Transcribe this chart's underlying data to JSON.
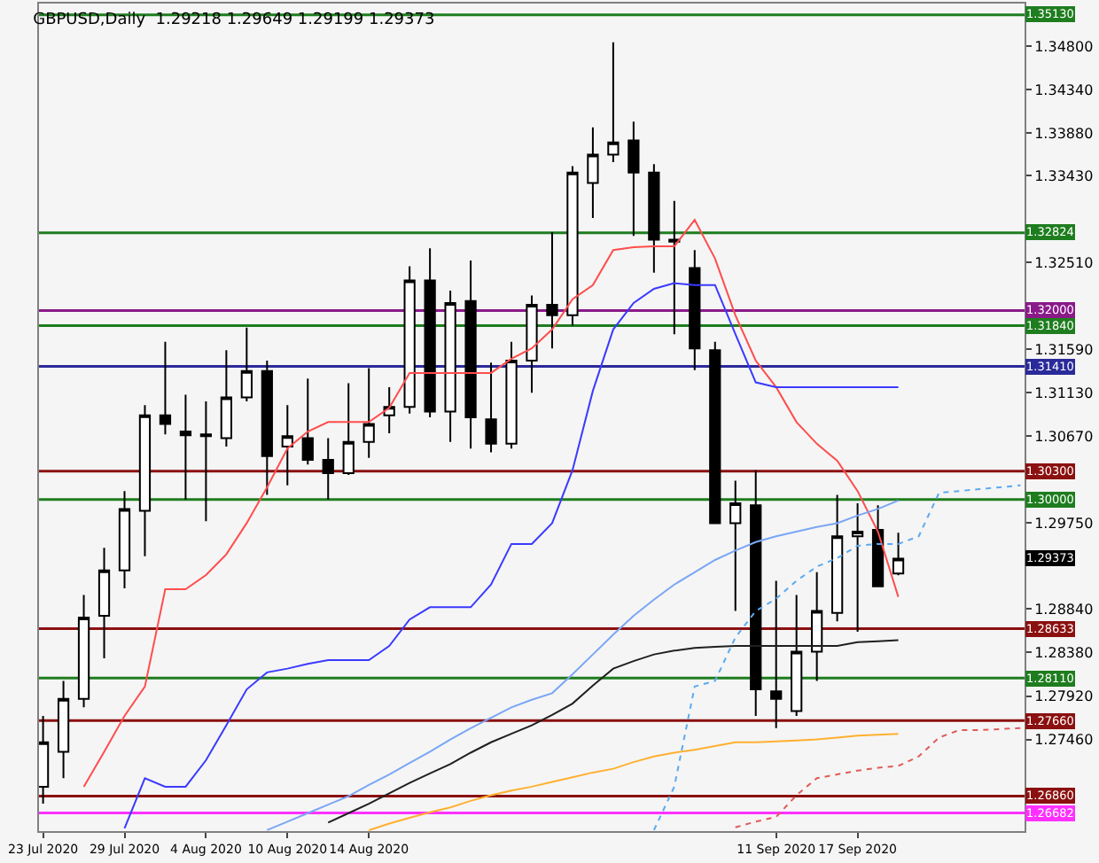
{
  "chart_data": {
    "type": "candlestick",
    "title": "GBPUSD,Daily  1.29218 1.29649 1.29199 1.29373",
    "categories": [
      "23 Jul 2020",
      null,
      null,
      null,
      "29 Jul 2020",
      null,
      null,
      null,
      "4 Aug 2020",
      null,
      null,
      null,
      "10 Aug 2020",
      null,
      null,
      null,
      "14 Aug 2020",
      null,
      null,
      null,
      null,
      null,
      null,
      null,
      null,
      null,
      null,
      null,
      null,
      null,
      null,
      null,
      null,
      null,
      null,
      null,
      "11 Sep 2020",
      null,
      null,
      null,
      "17 Sep 2020",
      null,
      null,
      null,
      null,
      null,
      null,
      null,
      null
    ],
    "ohlc": [
      [
        1.2696,
        1.2771,
        1.2678,
        1.2743
      ],
      [
        1.2733,
        1.2808,
        1.2705,
        1.2789
      ],
      [
        1.2789,
        1.2899,
        1.278,
        1.2875
      ],
      [
        1.2877,
        1.2949,
        1.2832,
        1.2925
      ],
      [
        1.2925,
        1.3009,
        1.2906,
        1.299
      ],
      [
        1.2988,
        1.31,
        1.294,
        1.3089
      ],
      [
        1.3089,
        1.3167,
        1.3069,
        1.308
      ],
      [
        1.3072,
        1.3111,
        1.3,
        1.3068
      ],
      [
        1.3069,
        1.3104,
        1.2977,
        1.3067
      ],
      [
        1.3065,
        1.3158,
        1.3056,
        1.3108
      ],
      [
        1.3108,
        1.3182,
        1.3104,
        1.3136
      ],
      [
        1.3136,
        1.3147,
        1.3005,
        1.3046
      ],
      [
        1.3056,
        1.31,
        1.3015,
        1.3067
      ],
      [
        1.3065,
        1.3128,
        1.3037,
        1.3042
      ],
      [
        1.3042,
        1.3065,
        1.3,
        1.3028
      ],
      [
        1.3028,
        1.3123,
        1.3026,
        1.3061
      ],
      [
        1.3061,
        1.3139,
        1.3044,
        1.308
      ],
      [
        1.3089,
        1.3119,
        1.307,
        1.3098
      ],
      [
        1.3098,
        1.3247,
        1.3091,
        1.3232
      ],
      [
        1.3232,
        1.3266,
        1.3087,
        1.3093
      ],
      [
        1.3093,
        1.3221,
        1.3061,
        1.3208
      ],
      [
        1.321,
        1.3253,
        1.3054,
        1.3087
      ],
      [
        1.3085,
        1.3145,
        1.305,
        1.3059
      ],
      [
        1.3059,
        1.3167,
        1.3054,
        1.3147
      ],
      [
        1.3147,
        1.3216,
        1.3113,
        1.3206
      ],
      [
        1.3206,
        1.3283,
        1.316,
        1.3195
      ],
      [
        1.3195,
        1.3353,
        1.3184,
        1.3346
      ],
      [
        1.3335,
        1.3394,
        1.3298,
        1.3365
      ],
      [
        1.3365,
        1.3484,
        1.3357,
        1.3378
      ],
      [
        1.338,
        1.34,
        1.3279,
        1.3346
      ],
      [
        1.3346,
        1.3355,
        1.324,
        1.3275
      ],
      [
        1.3275,
        1.3316,
        1.3175,
        1.3273
      ],
      [
        1.3245,
        1.3264,
        1.3137,
        1.316
      ],
      [
        1.3158,
        1.3167,
        1.2975,
        1.2975
      ],
      [
        1.2975,
        1.302,
        1.2882,
        1.2996
      ],
      [
        1.2994,
        1.3031,
        1.2771,
        1.2799
      ],
      [
        1.2797,
        1.2914,
        1.2758,
        1.2789
      ],
      [
        1.2776,
        1.2899,
        1.2771,
        1.2839
      ],
      [
        1.2839,
        1.2923,
        1.2808,
        1.2882
      ],
      [
        1.288,
        1.3005,
        1.2871,
        1.2961
      ],
      [
        1.2961,
        1.2996,
        1.286,
        1.2966
      ],
      [
        1.2968,
        1.2994,
        1.2908,
        1.2908
      ],
      [
        1.29218,
        1.29649,
        1.29199,
        1.29373
      ],
      null,
      null,
      null,
      null,
      null,
      null
    ],
    "series": [
      {
        "type": "line",
        "color": "#ff4d4d",
        "values": [
          null,
          null,
          1.2696,
          1.2733,
          1.2771,
          1.2802,
          1.2905,
          1.2905,
          1.292,
          1.2942,
          1.2975,
          1.3013,
          1.3054,
          1.3072,
          1.3082,
          1.3082,
          1.3082,
          1.3097,
          1.3134,
          1.3134,
          1.3134,
          1.3134,
          1.3134,
          1.3149,
          1.316,
          1.318,
          1.3212,
          1.3227,
          1.3264,
          1.3267,
          1.3268,
          1.3268,
          1.3296,
          1.3255,
          1.3195,
          1.3147,
          1.3119,
          1.3082,
          1.3059,
          1.3041,
          1.3009,
          1.2966,
          1.2897,
          null,
          null,
          null,
          null,
          null,
          null
        ]
      },
      {
        "type": "line",
        "color": "#3a3aff",
        "values": [
          null,
          null,
          null,
          null,
          1.2652,
          1.2705,
          1.2696,
          1.2696,
          1.2724,
          1.2761,
          1.2799,
          1.2817,
          1.2821,
          1.2826,
          1.283,
          1.283,
          1.283,
          1.2845,
          1.2873,
          1.2886,
          1.2886,
          1.2886,
          1.291,
          1.2953,
          1.2953,
          1.2975,
          1.3031,
          1.3115,
          1.318,
          1.3208,
          1.3223,
          1.3229,
          1.3227,
          1.3227,
          1.3175,
          1.3124,
          1.3119,
          1.3119,
          1.3119,
          1.3119,
          1.3119,
          1.3119,
          1.3119,
          null,
          null,
          null,
          null,
          null,
          null
        ]
      },
      {
        "type": "line",
        "color": "#7aa6f5",
        "values": [
          null,
          null,
          null,
          null,
          null,
          null,
          null,
          null,
          null,
          null,
          null,
          1.265,
          1.2659,
          1.2668,
          1.2677,
          1.2686,
          1.2698,
          1.2709,
          1.2721,
          1.2733,
          1.2746,
          1.2758,
          1.2769,
          1.278,
          1.2788,
          1.2795,
          1.2815,
          1.2836,
          1.2857,
          1.2877,
          1.2894,
          1.291,
          1.2923,
          1.2936,
          1.2946,
          1.2955,
          1.2961,
          1.2966,
          1.2971,
          1.2975,
          1.2983,
          1.299,
          1.2999,
          null,
          null,
          null,
          null,
          null,
          null
        ]
      },
      {
        "type": "line",
        "color": "#202020",
        "values": [
          null,
          null,
          null,
          null,
          null,
          null,
          null,
          null,
          null,
          null,
          null,
          null,
          null,
          null,
          1.2658,
          1.2668,
          1.2678,
          1.2689,
          1.27,
          1.271,
          1.272,
          1.2732,
          1.2743,
          1.2752,
          1.2761,
          1.2772,
          1.2784,
          1.2803,
          1.2821,
          1.2829,
          1.2836,
          1.284,
          1.2843,
          1.2844,
          1.2845,
          1.2845,
          1.2845,
          1.2845,
          1.2845,
          1.2845,
          1.2849,
          1.285,
          1.2851,
          null,
          null,
          null,
          null,
          null,
          null
        ]
      },
      {
        "type": "line",
        "color": "#ffb030",
        "values": [
          null,
          null,
          null,
          null,
          null,
          null,
          null,
          null,
          null,
          null,
          null,
          null,
          null,
          null,
          null,
          null,
          1.265,
          1.2657,
          1.2663,
          1.2669,
          1.2674,
          1.2681,
          1.2687,
          1.2692,
          1.2696,
          1.2701,
          1.2706,
          1.2711,
          1.2715,
          1.2722,
          1.2728,
          1.2732,
          1.2735,
          1.2739,
          1.2743,
          1.2743,
          1.2744,
          1.2745,
          1.2746,
          1.2748,
          1.275,
          1.2751,
          1.2752,
          null,
          null,
          null,
          null,
          null,
          null
        ]
      },
      {
        "type": "line",
        "color": "#5aaaf0",
        "line_style": "dotted",
        "values": [
          null,
          null,
          null,
          null,
          null,
          null,
          null,
          null,
          null,
          null,
          null,
          null,
          null,
          null,
          null,
          null,
          null,
          null,
          null,
          null,
          null,
          null,
          null,
          null,
          null,
          null,
          null,
          null,
          null,
          null,
          1.265,
          1.2696,
          1.2802,
          1.2808,
          1.2854,
          1.2882,
          1.2895,
          1.2914,
          1.2929,
          1.2938,
          1.2951,
          1.2953,
          1.2953,
          1.2961,
          1.3007,
          1.3009,
          1.3011,
          1.3013,
          1.3015
        ]
      },
      {
        "type": "line",
        "color": "#e05a5a",
        "line_style": "dotted",
        "values": [
          null,
          null,
          null,
          null,
          null,
          null,
          null,
          null,
          null,
          null,
          null,
          null,
          null,
          null,
          null,
          null,
          null,
          null,
          null,
          null,
          null,
          null,
          null,
          null,
          null,
          null,
          null,
          null,
          null,
          null,
          null,
          null,
          null,
          null,
          1.2653,
          1.2659,
          1.2664,
          1.2687,
          1.2705,
          1.2709,
          1.2713,
          1.2716,
          1.2718,
          1.2728,
          1.2748,
          1.2756,
          1.2756,
          1.2757,
          1.2758
        ]
      }
    ],
    "ylim": [
      1.2649,
      1.3525
    ],
    "yticks": [
      {
        "value": 1.348,
        "label": "1.34800"
      },
      {
        "value": 1.3434,
        "label": "1.34340"
      },
      {
        "value": 1.3388,
        "label": "1.33880"
      },
      {
        "value": 1.3343,
        "label": "1.33430"
      },
      {
        "value": 1.3251,
        "label": "1.32510"
      },
      {
        "value": 1.3159,
        "label": "1.31590"
      },
      {
        "value": 1.3113,
        "label": "1.31130"
      },
      {
        "value": 1.3067,
        "label": "1.30670"
      },
      {
        "value": 1.2975,
        "label": "1.29750"
      },
      {
        "value": 1.2884,
        "label": "1.28840"
      },
      {
        "value": 1.2838,
        "label": "1.28380"
      },
      {
        "value": 1.2792,
        "label": "1.27920"
      },
      {
        "value": 1.2746,
        "label": "1.27460"
      }
    ],
    "ref_lines": [
      {
        "axis": "y",
        "value": 1.3513,
        "label": "1.35130",
        "color": "#1e7d1e"
      },
      {
        "axis": "y",
        "value": 1.32824,
        "label": "1.32824",
        "color": "#1e7d1e"
      },
      {
        "axis": "y",
        "value": 1.32,
        "label": "1.32000",
        "color": "#8a1a8a"
      },
      {
        "axis": "y",
        "value": 1.3184,
        "label": "1.31840",
        "color": "#1e7d1e"
      },
      {
        "axis": "y",
        "value": 1.3141,
        "label": "1.31410",
        "color": "#2a2a9a"
      },
      {
        "axis": "y",
        "value": 1.303,
        "label": "1.30300",
        "color": "#8b1010"
      },
      {
        "axis": "y",
        "value": 1.3,
        "label": "1.30000",
        "color": "#1e7d1e"
      },
      {
        "axis": "y",
        "value": 1.28633,
        "label": "1.28633",
        "color": "#8b1010"
      },
      {
        "axis": "y",
        "value": 1.2811,
        "label": "1.28110",
        "color": "#1e7d1e"
      },
      {
        "axis": "y",
        "value": 1.2766,
        "label": "1.27660",
        "color": "#8b1010"
      },
      {
        "axis": "y",
        "value": 1.2686,
        "label": "1.26860",
        "color": "#8b1010"
      },
      {
        "axis": "y",
        "value": 1.26682,
        "label": "1.26682",
        "color": "#ff30ff"
      }
    ],
    "annotations": [
      {
        "text": "1.29373",
        "y": 1.29373
      }
    ],
    "grid": false
  }
}
